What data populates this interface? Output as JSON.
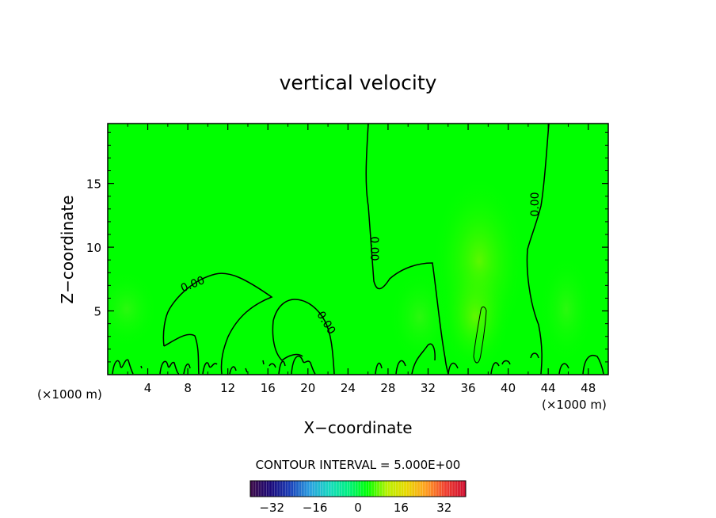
{
  "chart_data": {
    "type": "heatmap",
    "title": "vertical velocity",
    "xlabel": "X−coordinate",
    "ylabel": "Z−coordinate",
    "x_units": "(×1000 m)",
    "y_units": "(×1000 m)",
    "xlim": [
      0,
      50
    ],
    "ylim": [
      0,
      19.7
    ],
    "x_ticks": [
      "4",
      "8",
      "12",
      "16",
      "20",
      "24",
      "28",
      "32",
      "36",
      "40",
      "44",
      "48"
    ],
    "y_ticks": [
      "5",
      "10",
      "15"
    ],
    "contour_interval_text": "CONTOUR INTERVAL = 5.000E+00",
    "contour_label": "0.00",
    "colorbar": {
      "min": -40,
      "max": 40,
      "ticks": [
        "−32",
        "−16",
        "0",
        "16",
        "32"
      ],
      "colors": [
        "#3a0a4a",
        "#1a0a7a",
        "#1a3fb8",
        "#2a9fe0",
        "#18d8c0",
        "#00f080",
        "#00ff00",
        "#b8f000",
        "#e8d800",
        "#ffa020",
        "#f04030",
        "#d01030"
      ]
    },
    "field_background": "#00ff00",
    "grid": false
  }
}
